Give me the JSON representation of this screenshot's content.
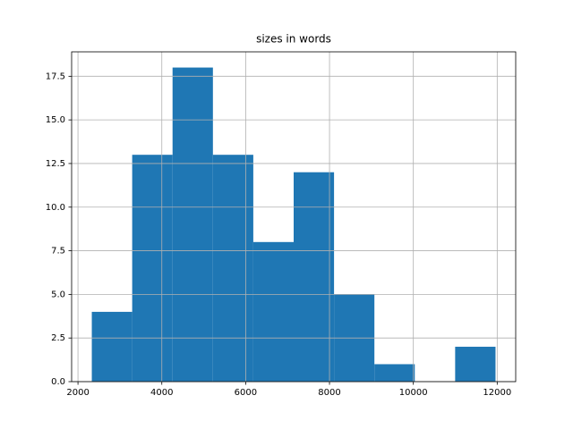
{
  "chart_data": {
    "type": "histogram",
    "title": "sizes in words",
    "bins": [
      2330,
      3293,
      4256,
      5219,
      6182,
      7145,
      8108,
      9071,
      10034,
      10997,
      11960
    ],
    "values": [
      4,
      13,
      18,
      13,
      8,
      12,
      5,
      1,
      0,
      2
    ],
    "color": "#1f77b4",
    "xlim": [
      1848.5,
      12441.5
    ],
    "xticks": [
      2000,
      4000,
      6000,
      8000,
      10000,
      12000
    ],
    "ylim": [
      0,
      18.9
    ],
    "yticks": [
      {
        "value": 0,
        "label": "0.0"
      },
      2.5,
      {
        "value": 5,
        "label": "5.0"
      },
      7.5,
      {
        "value": 10,
        "label": "10.0"
      },
      12.5,
      {
        "value": 15,
        "label": "15.0"
      },
      17.5
    ],
    "grid": true
  }
}
